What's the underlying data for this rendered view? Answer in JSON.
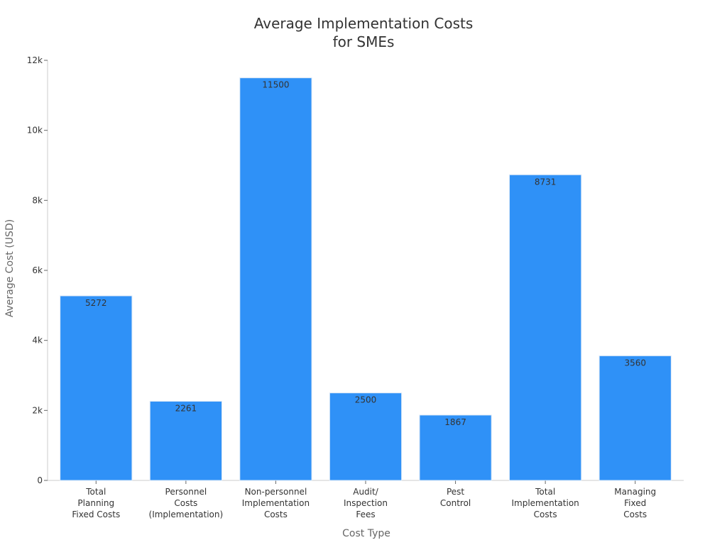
{
  "chart_data": {
    "type": "bar",
    "title": [
      "Average Implementation Costs",
      "for SMEs"
    ],
    "xlabel": "Cost Type",
    "ylabel": "Average Cost (USD)",
    "categories": [
      [
        "Total",
        "Planning",
        "Fixed Costs"
      ],
      [
        "Personnel",
        "Costs",
        "(Implementation)"
      ],
      [
        "Non-personnel",
        "Implementation",
        "Costs"
      ],
      [
        "Audit/",
        "Inspection",
        "Fees"
      ],
      [
        "Pest",
        "Control"
      ],
      [
        "Total",
        "Implementation",
        "Costs"
      ],
      [
        "Managing",
        "Fixed",
        "Costs"
      ]
    ],
    "values": [
      5272,
      2261,
      11500,
      2500,
      1867,
      8731,
      3560
    ],
    "data_labels": [
      "5272",
      "2261",
      "11500",
      "2500",
      "1867",
      "8731",
      "3560"
    ],
    "ylim": [
      0,
      12000
    ],
    "yticks": [
      0,
      2000,
      4000,
      6000,
      8000,
      10000,
      12000
    ],
    "ytick_labels": [
      "0",
      "2k",
      "4k",
      "6k",
      "8k",
      "10k",
      "12k"
    ],
    "bar_color": "#2f91f7",
    "grid": false,
    "legend": "none"
  }
}
